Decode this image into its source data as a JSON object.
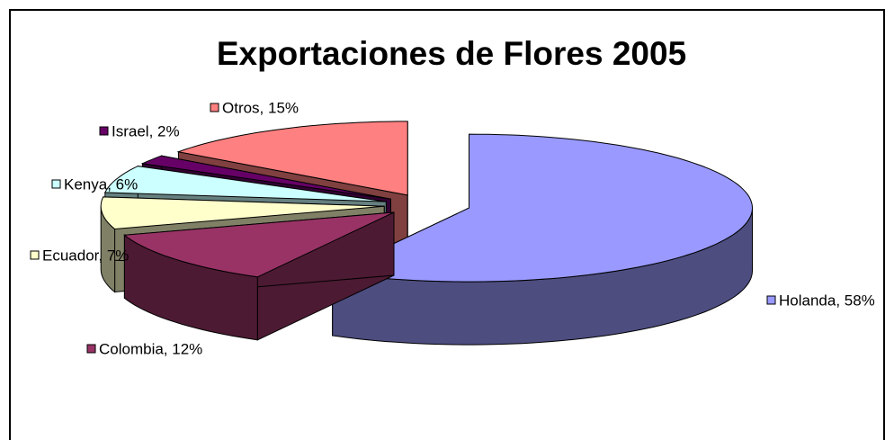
{
  "chart_data": {
    "type": "pie3d",
    "title": "Exportaciones de Flores 2005",
    "categories": [
      "Holanda",
      "Colombia",
      "Ecuador",
      "Kenya",
      "Israel",
      "Otros"
    ],
    "values": [
      58,
      12,
      7,
      6,
      2,
      15
    ],
    "value_labels": [
      "Holanda, 58%",
      "Colombia, 12%",
      "Ecuador, 7%",
      "Kenya, 6%",
      "Israel, 2%",
      "Otros, 15%"
    ],
    "colors": [
      "#9999ff",
      "#993366",
      "#ffffcc",
      "#ccffff",
      "#660066",
      "#ff8080"
    ]
  }
}
